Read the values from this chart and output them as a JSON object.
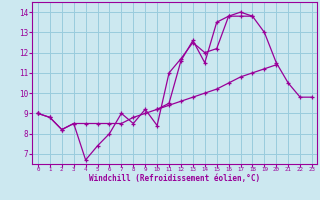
{
  "xlabel": "Windchill (Refroidissement éolien,°C)",
  "background_color": "#cce8f0",
  "line_color": "#990099",
  "grid_color": "#99ccdd",
  "xlim": [
    -0.5,
    23.4
  ],
  "ylim": [
    6.5,
    14.5
  ],
  "yticks": [
    7,
    8,
    9,
    10,
    11,
    12,
    13,
    14
  ],
  "xticks": [
    0,
    1,
    2,
    3,
    4,
    5,
    6,
    7,
    8,
    9,
    10,
    11,
    12,
    13,
    14,
    15,
    16,
    17,
    18,
    19,
    20,
    21,
    22,
    23
  ],
  "series": [
    [
      9.0,
      8.8,
      8.2,
      8.5,
      6.7,
      7.4,
      8.0,
      9.0,
      8.5,
      9.2,
      8.4,
      11.0,
      11.7,
      12.5,
      12.0,
      12.2,
      13.8,
      13.8,
      13.8,
      13.0,
      11.5,
      10.5,
      9.8,
      9.8
    ],
    [
      9.0,
      8.8,
      8.2,
      8.5,
      8.5,
      8.5,
      8.5,
      8.5,
      8.8,
      9.0,
      9.2,
      9.4,
      9.6,
      9.8,
      10.0,
      10.2,
      10.5,
      10.8,
      11.0,
      11.2,
      11.4,
      null,
      null,
      null
    ],
    [
      9.0,
      null,
      null,
      null,
      null,
      null,
      null,
      null,
      null,
      null,
      9.2,
      9.5,
      11.6,
      12.6,
      11.5,
      13.5,
      13.8,
      14.0,
      13.8,
      null,
      null,
      null,
      null,
      null
    ]
  ]
}
